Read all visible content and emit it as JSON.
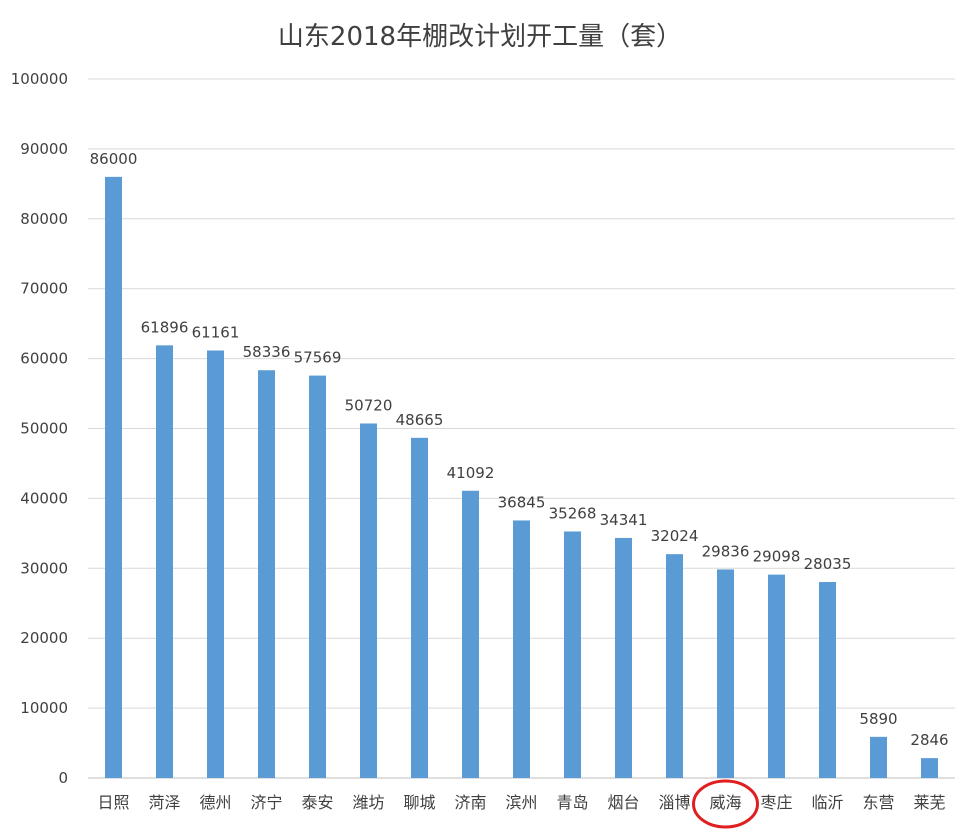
{
  "chart_data": {
    "type": "bar",
    "title": "山东2018年棚改计划开工量（套）",
    "xlabel": "",
    "ylabel": "",
    "ylim": [
      0,
      100000
    ],
    "yticks": [
      0,
      10000,
      20000,
      30000,
      40000,
      50000,
      60000,
      70000,
      80000,
      90000,
      100000
    ],
    "grid": true,
    "legend": "none",
    "categories": [
      "日照",
      "菏泽",
      "德州",
      "济宁",
      "泰安",
      "潍坊",
      "聊城",
      "济南",
      "滨州",
      "青岛",
      "烟台",
      "淄博",
      "威海",
      "枣庄",
      "临沂",
      "东营",
      "莱芜"
    ],
    "values": [
      86000,
      61896,
      61161,
      58336,
      57569,
      50720,
      48665,
      41092,
      36845,
      35268,
      34341,
      32024,
      29836,
      29098,
      28035,
      5890,
      2846
    ],
    "highlighted_category": "威海",
    "colors": {
      "bar": "#5b9bd5",
      "grid": "#d9d9d9",
      "highlight": "#e02020",
      "text": "#404040"
    }
  }
}
